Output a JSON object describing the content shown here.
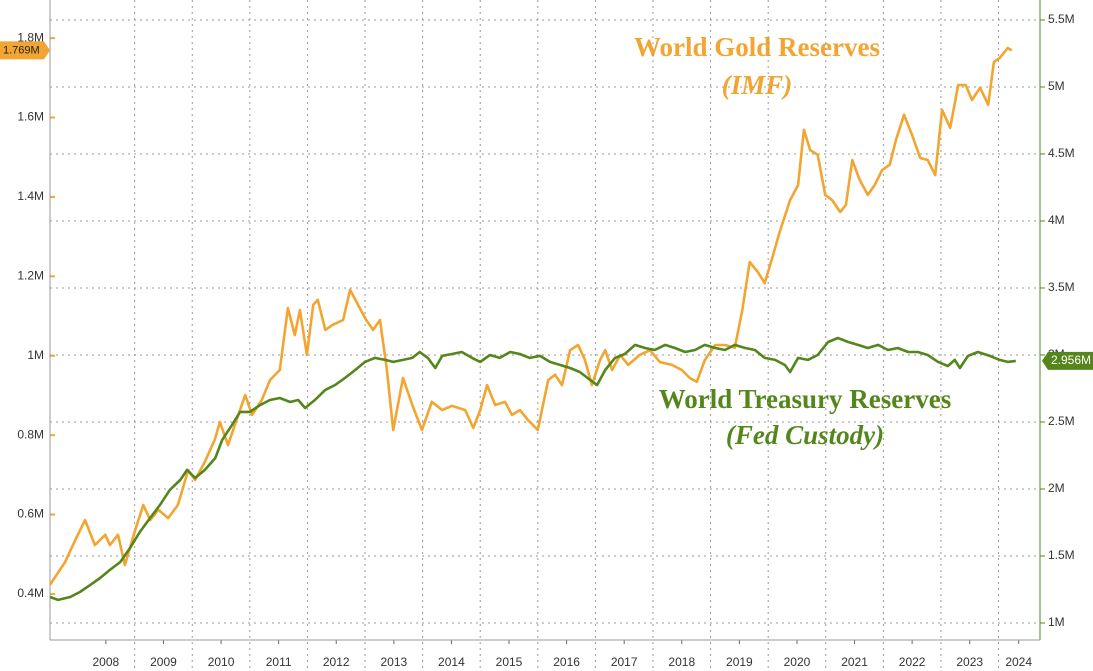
{
  "chart_data": {
    "type": "line",
    "annotations": [
      "World Gold Reserves",
      "(IMF)",
      "World Treasury Reserves",
      "(Fed Custody)"
    ],
    "xlim": [
      2007.53,
      2024.72
    ],
    "xticks": [
      {
        "value": 2008.5,
        "label": "2008"
      },
      {
        "value": 2009.5,
        "label": "2009"
      },
      {
        "value": 2010.5,
        "label": "2010"
      },
      {
        "value": 2011.5,
        "label": "2011"
      },
      {
        "value": 2012.5,
        "label": "2012"
      },
      {
        "value": 2013.5,
        "label": "2013"
      },
      {
        "value": 2014.5,
        "label": "2014"
      },
      {
        "value": 2015.5,
        "label": "2015"
      },
      {
        "value": 2016.5,
        "label": "2016"
      },
      {
        "value": 2017.5,
        "label": "2017"
      },
      {
        "value": 2018.5,
        "label": "2018"
      },
      {
        "value": 2019.5,
        "label": "2019"
      },
      {
        "value": 2020.5,
        "label": "2020"
      },
      {
        "value": 2021.5,
        "label": "2021"
      },
      {
        "value": 2022.5,
        "label": "2022"
      },
      {
        "value": 2023.5,
        "label": "2023"
      },
      {
        "value": 2024.35,
        "label": "2024"
      }
    ],
    "ylim": [
      0.284,
      1.896
    ],
    "yticks": [
      {
        "value": 0.4,
        "label": "0.4M"
      },
      {
        "value": 0.6,
        "label": "0.6M"
      },
      {
        "value": 0.8,
        "label": "0.8M"
      },
      {
        "value": 1,
        "label": "1M"
      },
      {
        "value": 1.2,
        "label": "1.2M"
      },
      {
        "value": 1.4,
        "label": "1.4M"
      },
      {
        "value": 1.6,
        "label": "1.6M"
      },
      {
        "value": 1.8,
        "label": "1.8M"
      }
    ],
    "y2lim": [
      0.873,
      5.649
    ],
    "y2ticks": [
      {
        "value": 1,
        "label": "1M"
      },
      {
        "value": 1.5,
        "label": "1.5M"
      },
      {
        "value": 2,
        "label": "2M"
      },
      {
        "value": 2.5,
        "label": "2.5M"
      },
      {
        "value": 3,
        "label": "3M"
      },
      {
        "value": 3.5,
        "label": "3.5M"
      },
      {
        "value": 4,
        "label": "4M"
      },
      {
        "value": 4.5,
        "label": "4.5M"
      },
      {
        "value": 5,
        "label": "5M"
      },
      {
        "value": 5.5,
        "label": "5.5M"
      }
    ],
    "grid": true,
    "series": [
      {
        "name": "World Gold Reserves (IMF)",
        "color": "#f2a530",
        "end_label": "1.769M",
        "x": [
          2007.53,
          2007.79,
          2007.97,
          2008.14,
          2008.31,
          2008.49,
          2008.57,
          2008.71,
          2008.83,
          2009.01,
          2009.15,
          2009.27,
          2009.41,
          2009.58,
          2009.75,
          2009.93,
          2010.05,
          2010.22,
          2010.39,
          2010.48,
          2010.62,
          2010.74,
          2010.92,
          2011.04,
          2011.21,
          2011.35,
          2011.52,
          2011.66,
          2011.78,
          2011.87,
          2011.99,
          2012.1,
          2012.18,
          2012.31,
          2012.44,
          2012.62,
          2012.74,
          2012.88,
          2013.02,
          2013.14,
          2013.26,
          2013.38,
          2013.49,
          2013.66,
          2013.82,
          2013.99,
          2014.16,
          2014.34,
          2014.51,
          2014.74,
          2014.88,
          2015.0,
          2015.12,
          2015.26,
          2015.43,
          2015.55,
          2015.69,
          2015.83,
          2016.0,
          2016.18,
          2016.3,
          2016.42,
          2016.56,
          2016.7,
          2016.82,
          2016.94,
          2017.08,
          2017.17,
          2017.29,
          2017.43,
          2017.57,
          2017.77,
          2017.95,
          2018.12,
          2018.33,
          2018.5,
          2018.64,
          2018.76,
          2018.9,
          2019.08,
          2019.25,
          2019.42,
          2019.55,
          2019.68,
          2019.82,
          2019.94,
          2020.07,
          2020.2,
          2020.38,
          2020.52,
          2020.62,
          2020.73,
          2020.86,
          2020.99,
          2021.11,
          2021.25,
          2021.35,
          2021.46,
          2021.59,
          2021.73,
          2021.85,
          2021.98,
          2022.11,
          2022.22,
          2022.36,
          2022.5,
          2022.64,
          2022.77,
          2022.9,
          2023.02,
          2023.16,
          2023.3,
          2023.43,
          2023.54,
          2023.68,
          2023.82,
          2023.92,
          2024.02,
          2024.16,
          2024.23
        ],
        "values": [
          0.423,
          0.48,
          0.536,
          0.586,
          0.523,
          0.549,
          0.523,
          0.549,
          0.473,
          0.561,
          0.624,
          0.586,
          0.612,
          0.591,
          0.624,
          0.712,
          0.687,
          0.733,
          0.788,
          0.833,
          0.775,
          0.826,
          0.901,
          0.851,
          0.889,
          0.939,
          0.964,
          1.12,
          1.052,
          1.115,
          1.002,
          1.128,
          1.141,
          1.065,
          1.078,
          1.09,
          1.166,
          1.128,
          1.09,
          1.065,
          1.09,
          0.964,
          0.813,
          0.944,
          0.876,
          0.813,
          0.884,
          0.863,
          0.874,
          0.863,
          0.818,
          0.863,
          0.926,
          0.876,
          0.884,
          0.851,
          0.863,
          0.838,
          0.813,
          0.939,
          0.952,
          0.926,
          1.014,
          1.027,
          0.989,
          0.926,
          0.989,
          1.014,
          0.964,
          1.002,
          0.977,
          1.002,
          1.014,
          0.984,
          0.977,
          0.964,
          0.944,
          0.934,
          0.989,
          1.027,
          1.027,
          1.02,
          1.115,
          1.236,
          1.211,
          1.183,
          1.246,
          1.312,
          1.392,
          1.43,
          1.569,
          1.518,
          1.506,
          1.405,
          1.392,
          1.362,
          1.38,
          1.493,
          1.443,
          1.405,
          1.43,
          1.468,
          1.481,
          1.544,
          1.607,
          1.556,
          1.498,
          1.493,
          1.455,
          1.619,
          1.574,
          1.682,
          1.682,
          1.644,
          1.675,
          1.632,
          1.74,
          1.75,
          1.775,
          1.769
        ]
      },
      {
        "name": "World Treasury Reserves (Fed Custody)",
        "color": "#55861c",
        "axis": "y2",
        "end_label": "2.956M",
        "x": [
          2007.53,
          2007.67,
          2007.88,
          2008.05,
          2008.23,
          2008.4,
          2008.57,
          2008.75,
          2008.92,
          2009.09,
          2009.27,
          2009.44,
          2009.61,
          2009.79,
          2009.91,
          2010.05,
          2010.22,
          2010.4,
          2010.52,
          2010.69,
          2010.83,
          2011.0,
          2011.18,
          2011.35,
          2011.52,
          2011.7,
          2011.84,
          2011.96,
          2012.13,
          2012.31,
          2012.48,
          2012.65,
          2012.83,
          2013.0,
          2013.17,
          2013.35,
          2013.49,
          2013.66,
          2013.82,
          2013.95,
          2014.09,
          2014.22,
          2014.34,
          2014.51,
          2014.68,
          2014.86,
          2015.0,
          2015.17,
          2015.34,
          2015.52,
          2015.69,
          2015.86,
          2016.04,
          2016.21,
          2016.39,
          2016.56,
          2016.73,
          2016.91,
          2017.03,
          2017.17,
          2017.34,
          2017.51,
          2017.69,
          2017.86,
          2018.03,
          2018.21,
          2018.38,
          2018.56,
          2018.73,
          2018.9,
          2019.08,
          2019.25,
          2019.42,
          2019.6,
          2019.77,
          2019.94,
          2020.12,
          2020.29,
          2020.38,
          2020.52,
          2020.69,
          2020.86,
          2021.04,
          2021.21,
          2021.39,
          2021.56,
          2021.73,
          2021.91,
          2022.08,
          2022.25,
          2022.43,
          2022.6,
          2022.77,
          2022.95,
          2023.12,
          2023.24,
          2023.33,
          2023.47,
          2023.64,
          2023.85,
          2024.02,
          2024.16,
          2024.3
        ],
        "values": [
          1.194,
          1.172,
          1.194,
          1.231,
          1.284,
          1.336,
          1.396,
          1.455,
          1.56,
          1.679,
          1.784,
          1.881,
          1.993,
          2.067,
          2.142,
          2.082,
          2.142,
          2.231,
          2.366,
          2.478,
          2.575,
          2.575,
          2.627,
          2.664,
          2.679,
          2.649,
          2.664,
          2.604,
          2.664,
          2.739,
          2.776,
          2.828,
          2.888,
          2.948,
          2.978,
          2.963,
          2.948,
          2.963,
          2.978,
          3.022,
          2.978,
          2.903,
          2.993,
          3.007,
          3.022,
          2.978,
          2.948,
          3.0,
          2.978,
          3.022,
          3.007,
          2.978,
          2.993,
          2.948,
          2.925,
          2.903,
          2.873,
          2.813,
          2.776,
          2.888,
          2.978,
          3.007,
          3.075,
          3.052,
          3.037,
          3.075,
          3.052,
          3.022,
          3.037,
          3.075,
          3.052,
          3.037,
          3.075,
          3.052,
          3.037,
          2.978,
          2.963,
          2.925,
          2.873,
          2.978,
          2.963,
          3.0,
          3.097,
          3.127,
          3.097,
          3.075,
          3.052,
          3.075,
          3.037,
          3.052,
          3.022,
          3.022,
          3.0,
          2.948,
          2.918,
          2.963,
          2.903,
          2.993,
          3.022,
          2.993,
          2.963,
          2.948,
          2.956
        ]
      }
    ]
  }
}
